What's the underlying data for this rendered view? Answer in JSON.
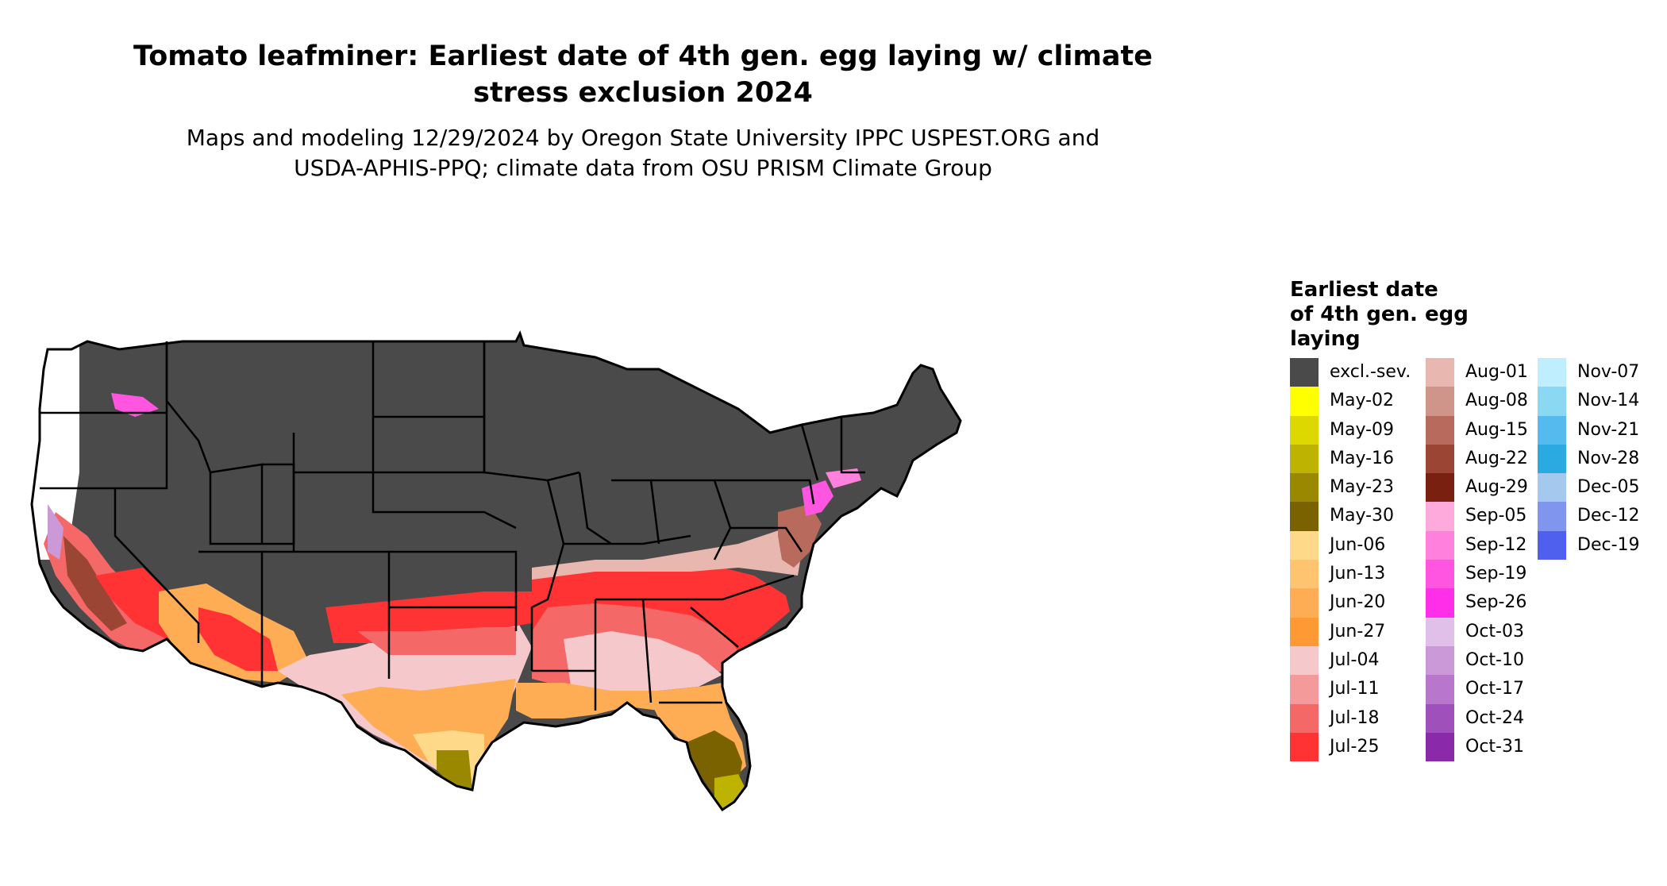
{
  "title_line1": "Tomato leafminer: Earliest date of 4th gen. egg laying w/ climate",
  "title_line2": "stress exclusion 2024",
  "subtitle_line1": "Maps and modeling 12/29/2024 by Oregon State University IPPC USPEST.ORG and",
  "subtitle_line2": "USDA-APHIS-PPQ; climate data from OSU PRISM Climate Group",
  "legend": {
    "title_line1": "Earliest date",
    "title_line2": "of 4th gen. egg",
    "title_line3": "laying",
    "items": [
      {
        "label": "excl.-sev.",
        "color": "#4a4a4a"
      },
      {
        "label": "May-02",
        "color": "#ffff00"
      },
      {
        "label": "May-09",
        "color": "#dcd800"
      },
      {
        "label": "May-16",
        "color": "#bdb300"
      },
      {
        "label": "May-23",
        "color": "#9a8800"
      },
      {
        "label": "May-30",
        "color": "#7a6200"
      },
      {
        "label": "Jun-06",
        "color": "#ffd98a"
      },
      {
        "label": "Jun-13",
        "color": "#ffc470"
      },
      {
        "label": "Jun-20",
        "color": "#ffad55"
      },
      {
        "label": "Jun-27",
        "color": "#ff9933"
      },
      {
        "label": "Jul-04",
        "color": "#f5c8cc"
      },
      {
        "label": "Jul-11",
        "color": "#f59a9a"
      },
      {
        "label": "Jul-18",
        "color": "#f56868"
      },
      {
        "label": "Jul-25",
        "color": "#ff3333"
      },
      {
        "label": "Aug-01",
        "color": "#e8b8b0"
      },
      {
        "label": "Aug-08",
        "color": "#d0958a"
      },
      {
        "label": "Aug-15",
        "color": "#b86a5c"
      },
      {
        "label": "Aug-22",
        "color": "#9b4535"
      },
      {
        "label": "Aug-29",
        "color": "#7a2010"
      },
      {
        "label": "Sep-05",
        "color": "#ffaadd"
      },
      {
        "label": "Sep-12",
        "color": "#ff80dd"
      },
      {
        "label": "Sep-19",
        "color": "#ff55e0"
      },
      {
        "label": "Sep-26",
        "color": "#ff2ee8"
      },
      {
        "label": "Oct-03",
        "color": "#e0c0e8"
      },
      {
        "label": "Oct-10",
        "color": "#cc99d8"
      },
      {
        "label": "Oct-17",
        "color": "#b877cc"
      },
      {
        "label": "Oct-24",
        "color": "#a050bb"
      },
      {
        "label": "Oct-31",
        "color": "#8a2aaa"
      },
      {
        "label": "Nov-07",
        "color": "#bfeeff"
      },
      {
        "label": "Nov-14",
        "color": "#8ad8f2"
      },
      {
        "label": "Nov-21",
        "color": "#55bbee"
      },
      {
        "label": "Nov-28",
        "color": "#2aaae0"
      },
      {
        "label": "Dec-05",
        "color": "#a5c8ee"
      },
      {
        "label": "Dec-12",
        "color": "#8095ee"
      },
      {
        "label": "Dec-19",
        "color": "#5060ee"
      }
    ]
  }
}
